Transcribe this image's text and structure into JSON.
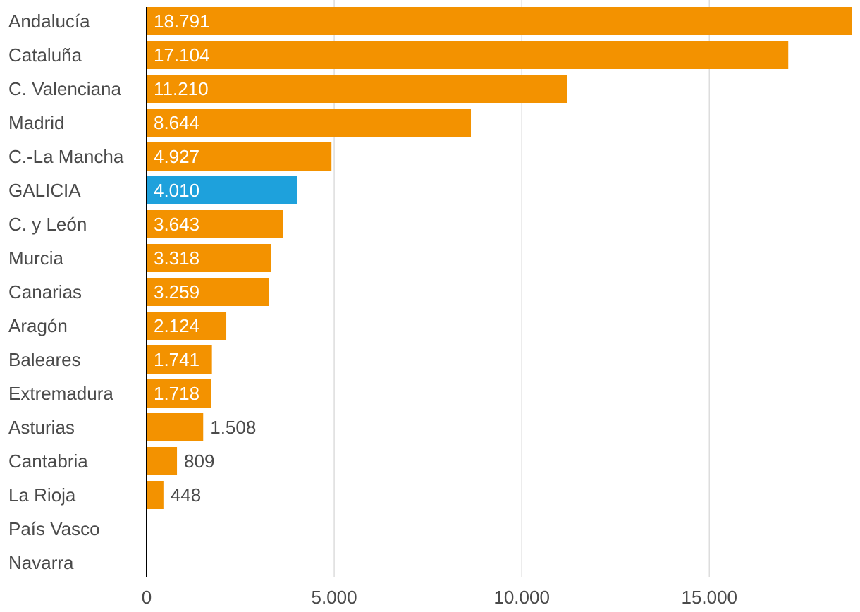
{
  "chart_data": {
    "type": "bar",
    "orientation": "horizontal",
    "categories": [
      "Andalucía",
      "Cataluña",
      "C. Valenciana",
      "Madrid",
      "C.-La Mancha",
      "GALICIA",
      "C. y León",
      "Murcia",
      "Canarias",
      "Aragón",
      "Baleares",
      "Extremadura",
      "Asturias",
      "Cantabria",
      "La Rioja",
      "País Vasco",
      "Navarra"
    ],
    "values": [
      18791,
      17104,
      11210,
      8644,
      4927,
      4010,
      3643,
      3318,
      3259,
      2124,
      1741,
      1718,
      1508,
      809,
      448,
      null,
      null
    ],
    "value_labels": [
      "18.791",
      "17.104",
      "11.210",
      "8.644",
      "4.927",
      "4.010",
      "3.643",
      "3.318",
      "3.259",
      "2.124",
      "1.741",
      "1.718",
      "1.508",
      "809",
      "448",
      "",
      ""
    ],
    "highlight_category": "GALICIA",
    "xlim": [
      0,
      18791
    ],
    "xticks": [
      0,
      5000,
      10000,
      15000
    ],
    "xtick_labels": [
      "0",
      "5.000",
      "10.000",
      "15.000"
    ],
    "grid": true,
    "title": "",
    "xlabel": "",
    "ylabel": ""
  },
  "colors": {
    "bar": "#f39200",
    "highlight": "#1ea1dc",
    "grid": "#dddddd",
    "text": "#4a4a4a",
    "axis": "#000000"
  }
}
